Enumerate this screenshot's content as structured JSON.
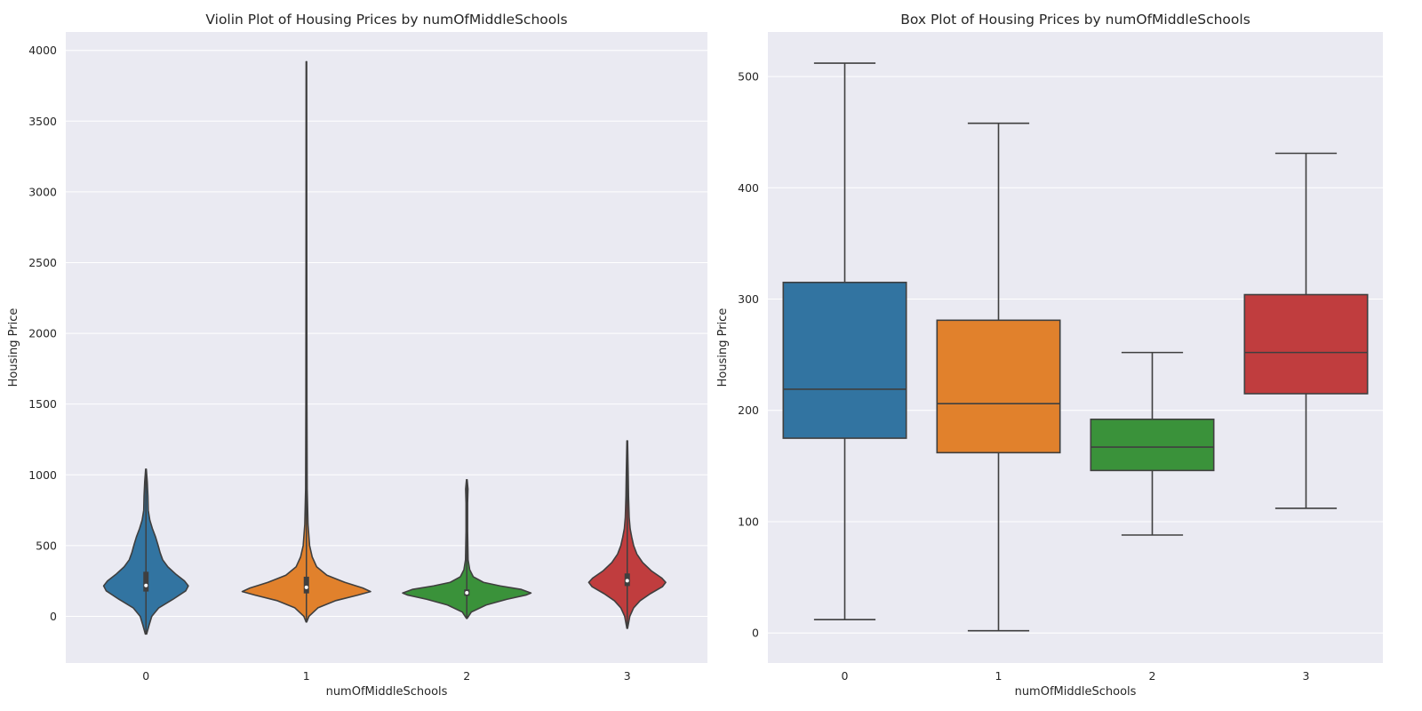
{
  "chart_data": [
    {
      "type": "violin",
      "title": "Violin Plot of Housing Prices by numOfMiddleSchools",
      "xlabel": "numOfMiddleSchools",
      "ylabel": "Housing Price",
      "categories": [
        "0",
        "1",
        "2",
        "3"
      ],
      "ylim": [
        -330,
        4130
      ],
      "yticks": [
        0,
        500,
        1000,
        1500,
        2000,
        2500,
        3000,
        3500,
        4000
      ],
      "grid": true,
      "series": [
        {
          "category": "0",
          "color": "#3274a1",
          "min": -125,
          "max": 1040,
          "q1": 175,
          "median": 218,
          "q3": 315,
          "profile": [
            [
              -125,
              0.01
            ],
            [
              -60,
              0.05
            ],
            [
              0,
              0.09
            ],
            [
              60,
              0.2
            ],
            [
              120,
              0.42
            ],
            [
              180,
              0.62
            ],
            [
              215,
              0.66
            ],
            [
              250,
              0.6
            ],
            [
              300,
              0.46
            ],
            [
              350,
              0.34
            ],
            [
              400,
              0.26
            ],
            [
              450,
              0.22
            ],
            [
              500,
              0.19
            ],
            [
              560,
              0.15
            ],
            [
              620,
              0.1
            ],
            [
              680,
              0.06
            ],
            [
              750,
              0.035
            ],
            [
              850,
              0.03
            ],
            [
              950,
              0.02
            ],
            [
              1040,
              0.005
            ]
          ]
        },
        {
          "category": "1",
          "color": "#e1812c",
          "min": -40,
          "max": 3920,
          "q1": 162,
          "median": 205,
          "q3": 280,
          "profile": [
            [
              -40,
              0.005
            ],
            [
              0,
              0.04
            ],
            [
              60,
              0.18
            ],
            [
              110,
              0.45
            ],
            [
              150,
              0.8
            ],
            [
              175,
              1.0
            ],
            [
              200,
              0.88
            ],
            [
              240,
              0.6
            ],
            [
              290,
              0.32
            ],
            [
              350,
              0.16
            ],
            [
              420,
              0.09
            ],
            [
              500,
              0.05
            ],
            [
              650,
              0.025
            ],
            [
              900,
              0.012
            ],
            [
              1500,
              0.008
            ],
            [
              2500,
              0.006
            ],
            [
              3920,
              0.004
            ]
          ]
        },
        {
          "category": "2",
          "color": "#3a923a",
          "min": -15,
          "max": 965,
          "q1": 145,
          "median": 166,
          "q3": 190,
          "profile": [
            [
              -15,
              0.005
            ],
            [
              30,
              0.07
            ],
            [
              80,
              0.3
            ],
            [
              120,
              0.62
            ],
            [
              150,
              0.92
            ],
            [
              165,
              1.0
            ],
            [
              190,
              0.85
            ],
            [
              215,
              0.52
            ],
            [
              240,
              0.26
            ],
            [
              280,
              0.1
            ],
            [
              330,
              0.045
            ],
            [
              400,
              0.02
            ],
            [
              600,
              0.012
            ],
            [
              800,
              0.012
            ],
            [
              900,
              0.018
            ],
            [
              965,
              0.005
            ]
          ]
        },
        {
          "category": "3",
          "color": "#c03d3e",
          "min": -85,
          "max": 1240,
          "q1": 214,
          "median": 252,
          "q3": 303,
          "profile": [
            [
              -85,
              0.005
            ],
            [
              0,
              0.04
            ],
            [
              60,
              0.1
            ],
            [
              110,
              0.2
            ],
            [
              160,
              0.36
            ],
            [
              210,
              0.55
            ],
            [
              240,
              0.6
            ],
            [
              270,
              0.54
            ],
            [
              320,
              0.38
            ],
            [
              380,
              0.24
            ],
            [
              440,
              0.15
            ],
            [
              500,
              0.1
            ],
            [
              560,
              0.07
            ],
            [
              620,
              0.045
            ],
            [
              700,
              0.03
            ],
            [
              850,
              0.02
            ],
            [
              1000,
              0.015
            ],
            [
              1240,
              0.005
            ]
          ]
        }
      ]
    },
    {
      "type": "box",
      "title": "Box Plot of Housing Prices by numOfMiddleSchools",
      "xlabel": "numOfMiddleSchools",
      "ylabel": "Housing Price",
      "categories": [
        "0",
        "1",
        "2",
        "3"
      ],
      "ylim": [
        -27,
        540
      ],
      "yticks": [
        0,
        100,
        200,
        300,
        400,
        500
      ],
      "grid": true,
      "series": [
        {
          "category": "0",
          "color": "#3274a1",
          "whisker_low": 12,
          "q1": 175,
          "median": 219,
          "q3": 315,
          "whisker_high": 512
        },
        {
          "category": "1",
          "color": "#e1812c",
          "whisker_low": 2,
          "q1": 162,
          "median": 206,
          "q3": 281,
          "whisker_high": 458
        },
        {
          "category": "2",
          "color": "#3a923a",
          "whisker_low": 88,
          "q1": 146,
          "median": 167,
          "q3": 192,
          "whisker_high": 252
        },
        {
          "category": "3",
          "color": "#c03d3e",
          "whisker_low": 112,
          "q1": 215,
          "median": 252,
          "q3": 304,
          "whisker_high": 431
        }
      ]
    }
  ]
}
